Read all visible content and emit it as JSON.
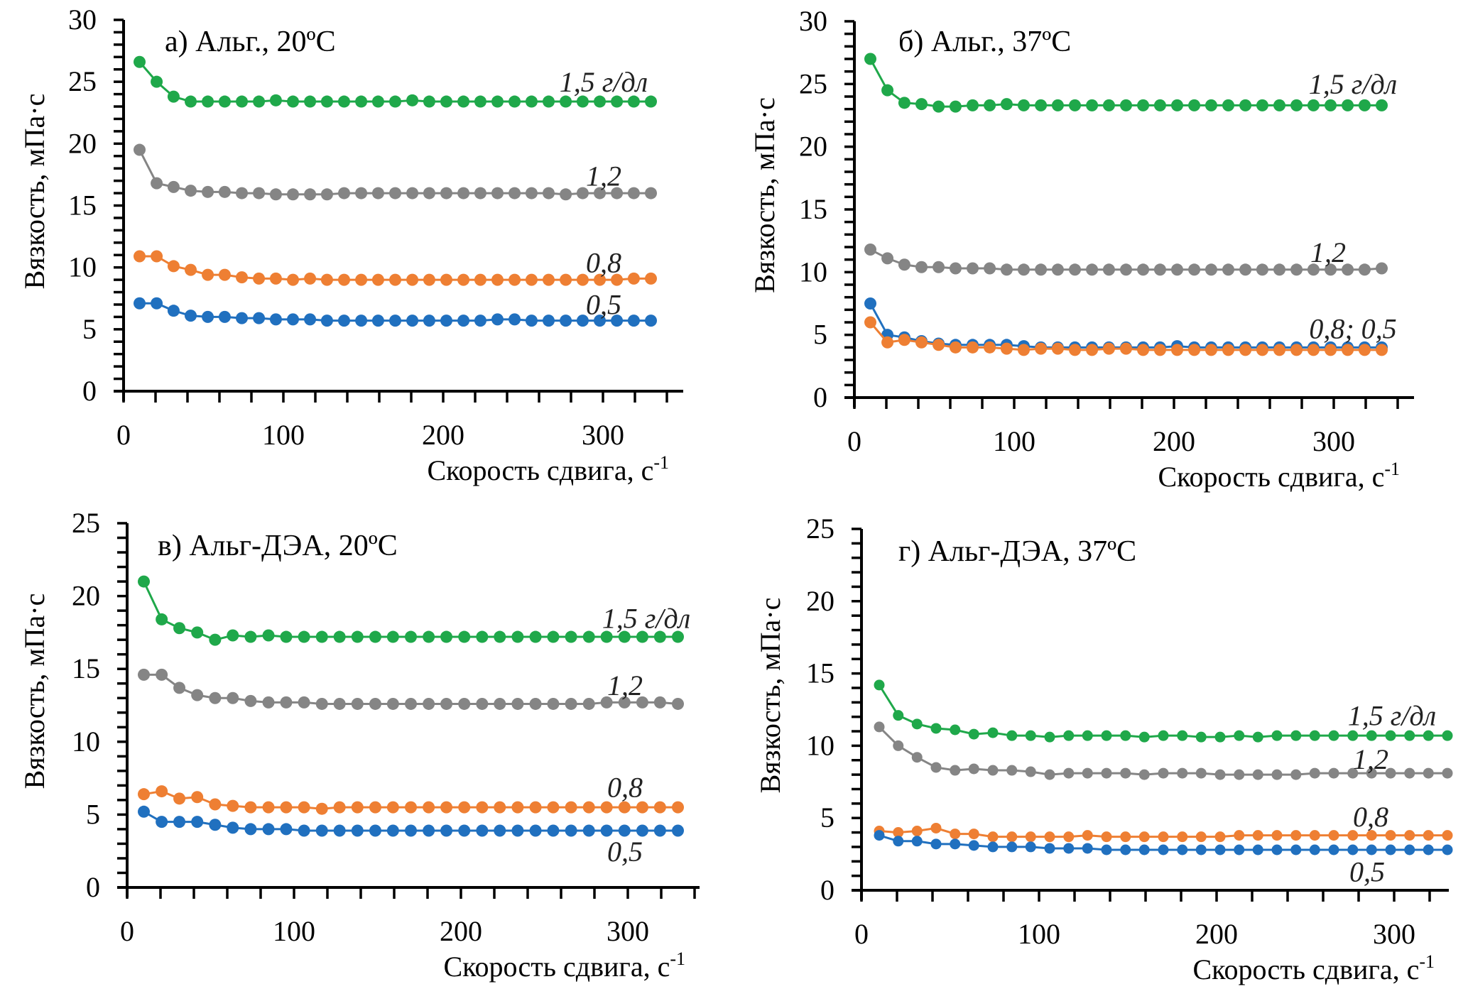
{
  "chart_data": [
    {
      "type": "line",
      "title": "а) Альг., 20ºC",
      "xlabel": "Скорость сдвига, с",
      "xlabel_sup": "-1",
      "ylabel": "Вязкость,  мПа·с",
      "xlim": [
        0,
        350
      ],
      "ylim": [
        0,
        30
      ],
      "xticks": [
        0,
        100,
        200,
        300
      ],
      "yticks": [
        0,
        5,
        10,
        15,
        20,
        25,
        30
      ],
      "grid": false,
      "x": [
        10,
        20.7,
        31.3,
        42,
        52.7,
        63.3,
        74,
        84.7,
        95.3,
        106,
        116.7,
        127.3,
        138,
        148.7,
        159.3,
        170,
        180.7,
        191.3,
        202,
        212.7,
        223.3,
        234,
        244.7,
        255.3,
        266,
        276.7,
        287.3,
        298,
        308.7,
        319.3,
        330
      ],
      "series": [
        {
          "name": "1,5 г/дл",
          "color": "#1fa84a",
          "label_value": 24.9,
          "values": [
            26.6,
            25.0,
            23.8,
            23.4,
            23.4,
            23.4,
            23.4,
            23.4,
            23.5,
            23.4,
            23.4,
            23.4,
            23.4,
            23.4,
            23.4,
            23.4,
            23.5,
            23.4,
            23.4,
            23.4,
            23.4,
            23.4,
            23.4,
            23.4,
            23.4,
            23.4,
            23.4,
            23.4,
            23.4,
            23.4,
            23.4
          ]
        },
        {
          "name": "1,2",
          "color": "#858585",
          "label_value": 17.3,
          "values": [
            19.5,
            16.8,
            16.5,
            16.2,
            16.1,
            16.1,
            16.0,
            16.0,
            15.9,
            15.9,
            15.9,
            15.9,
            16.0,
            16.0,
            16.0,
            16.0,
            16.0,
            16.0,
            16.0,
            16.0,
            16.0,
            16.0,
            16.0,
            16.0,
            16.0,
            15.9,
            16.0,
            16.0,
            16.0,
            16.0,
            16.0
          ]
        },
        {
          "name": "0,8",
          "color": "#ee7f33",
          "label_value": 10.3,
          "values": [
            10.9,
            10.9,
            10.1,
            9.8,
            9.4,
            9.4,
            9.2,
            9.1,
            9.1,
            9.0,
            9.1,
            9.0,
            9.0,
            9.0,
            9.0,
            9.0,
            9.0,
            9.0,
            9.0,
            9.0,
            9.0,
            9.0,
            9.0,
            9.0,
            9.0,
            9.0,
            9.0,
            9.0,
            9.0,
            9.1,
            9.1
          ]
        },
        {
          "name": "0,5",
          "color": "#2070bf",
          "label_value": 6.9,
          "values": [
            7.1,
            7.1,
            6.5,
            6.1,
            6.0,
            6.0,
            5.9,
            5.9,
            5.8,
            5.8,
            5.8,
            5.7,
            5.7,
            5.7,
            5.7,
            5.7,
            5.7,
            5.7,
            5.7,
            5.7,
            5.7,
            5.8,
            5.8,
            5.7,
            5.7,
            5.7,
            5.7,
            5.7,
            5.7,
            5.7,
            5.7
          ]
        }
      ]
    },
    {
      "type": "line",
      "title": "б) Альг., 37ºC",
      "xlabel": "Скорость сдвига, с",
      "xlabel_sup": "-1",
      "ylabel": "Вязкость,  мПа·с",
      "xlim": [
        0,
        350
      ],
      "ylim": [
        0,
        30
      ],
      "xticks": [
        0,
        100,
        200,
        300
      ],
      "yticks": [
        0,
        5,
        10,
        15,
        20,
        25,
        30
      ],
      "grid": false,
      "x": [
        10,
        20.7,
        31.3,
        42,
        52.7,
        63.3,
        74,
        84.7,
        95.3,
        106,
        116.7,
        127.3,
        138,
        148.7,
        159.3,
        170,
        180.7,
        191.3,
        202,
        212.7,
        223.3,
        234,
        244.7,
        255.3,
        266,
        276.7,
        287.3,
        298,
        308.7,
        319.3,
        330
      ],
      "series": [
        {
          "name": "1,5 г/дл",
          "color": "#1fa84a",
          "label_value": 24.9,
          "values": [
            27.0,
            24.5,
            23.5,
            23.4,
            23.2,
            23.2,
            23.3,
            23.3,
            23.4,
            23.3,
            23.3,
            23.3,
            23.3,
            23.3,
            23.3,
            23.3,
            23.3,
            23.3,
            23.3,
            23.3,
            23.3,
            23.3,
            23.3,
            23.3,
            23.3,
            23.3,
            23.3,
            23.3,
            23.3,
            23.3,
            23.3
          ]
        },
        {
          "name": "1,2",
          "color": "#858585",
          "label_value": 11.5,
          "values": [
            11.8,
            11.1,
            10.6,
            10.4,
            10.4,
            10.3,
            10.3,
            10.3,
            10.2,
            10.2,
            10.2,
            10.2,
            10.2,
            10.2,
            10.2,
            10.2,
            10.2,
            10.2,
            10.2,
            10.2,
            10.2,
            10.2,
            10.2,
            10.2,
            10.2,
            10.2,
            10.2,
            10.2,
            10.2,
            10.2,
            10.3
          ]
        },
        {
          "name": "0,5",
          "color": "#2070bf",
          "label_value": null,
          "values": [
            7.5,
            5.0,
            4.8,
            4.5,
            4.3,
            4.2,
            4.2,
            4.2,
            4.2,
            4.1,
            4.0,
            4.0,
            4.0,
            4.0,
            4.0,
            4.0,
            4.0,
            4.0,
            4.1,
            4.0,
            4.0,
            4.0,
            4.0,
            4.0,
            4.0,
            4.0,
            4.0,
            4.0,
            4.0,
            4.0,
            4.0
          ]
        },
        {
          "name": "0,8",
          "color": "#ee7f33",
          "label_value": null,
          "values": [
            6.0,
            4.4,
            4.6,
            4.4,
            4.2,
            4.0,
            4.0,
            4.0,
            3.9,
            3.8,
            3.9,
            3.9,
            3.8,
            3.8,
            3.9,
            3.9,
            3.8,
            3.8,
            3.8,
            3.8,
            3.8,
            3.8,
            3.8,
            3.8,
            3.8,
            3.8,
            3.8,
            3.8,
            3.8,
            3.8,
            3.8
          ]
        }
      ],
      "combined_label": {
        "text": "0,8; 0,5",
        "label_value": 5.4
      }
    },
    {
      "type": "line",
      "title": "в) Альг-ДЭА, 20ºC",
      "xlabel": "Скорость сдвига, с",
      "xlabel_sup": "-1",
      "ylabel": "Вязкость,  мПа·с",
      "xlim": [
        0,
        330
      ],
      "ylim": [
        0,
        25
      ],
      "xticks": [
        0,
        100,
        200,
        300
      ],
      "yticks": [
        0,
        5,
        10,
        15,
        20,
        25
      ],
      "grid": false,
      "x": [
        10,
        20.7,
        31.3,
        42,
        52.7,
        63.3,
        74,
        84.7,
        95.3,
        106,
        116.7,
        127.3,
        138,
        148.7,
        159.3,
        170,
        180.7,
        191.3,
        202,
        212.7,
        223.3,
        234,
        244.7,
        255.3,
        266,
        276.7,
        287.3,
        298,
        308.7,
        319.3,
        330
      ],
      "series": [
        {
          "name": "1,5 г/дл",
          "color": "#1fa84a",
          "label_value": 18.4,
          "values": [
            21.0,
            18.4,
            17.8,
            17.5,
            17.0,
            17.3,
            17.2,
            17.3,
            17.2,
            17.2,
            17.2,
            17.2,
            17.2,
            17.2,
            17.2,
            17.2,
            17.2,
            17.2,
            17.2,
            17.2,
            17.2,
            17.2,
            17.2,
            17.2,
            17.2,
            17.2,
            17.2,
            17.2,
            17.2,
            17.2,
            17.2
          ]
        },
        {
          "name": "1,2",
          "color": "#858585",
          "label_value": 13.8,
          "values": [
            14.6,
            14.6,
            13.7,
            13.2,
            13.0,
            13.0,
            12.8,
            12.7,
            12.7,
            12.7,
            12.6,
            12.6,
            12.6,
            12.6,
            12.6,
            12.6,
            12.6,
            12.6,
            12.6,
            12.6,
            12.6,
            12.6,
            12.6,
            12.6,
            12.6,
            12.6,
            12.7,
            12.7,
            12.7,
            12.7,
            12.6
          ]
        },
        {
          "name": "0,8",
          "color": "#ee7f33",
          "label_value": 6.8,
          "values": [
            6.4,
            6.6,
            6.1,
            6.2,
            5.7,
            5.6,
            5.5,
            5.5,
            5.5,
            5.5,
            5.4,
            5.5,
            5.5,
            5.5,
            5.5,
            5.5,
            5.5,
            5.5,
            5.5,
            5.5,
            5.5,
            5.5,
            5.5,
            5.5,
            5.5,
            5.5,
            5.5,
            5.5,
            5.5,
            5.5,
            5.5
          ]
        },
        {
          "name": "0,5",
          "color": "#2070bf",
          "label_value": 2.4,
          "values": [
            5.2,
            4.5,
            4.5,
            4.5,
            4.3,
            4.1,
            4.0,
            4.0,
            4.0,
            3.9,
            3.9,
            3.9,
            3.9,
            3.9,
            3.9,
            3.9,
            3.9,
            3.9,
            3.9,
            3.9,
            3.9,
            3.9,
            3.9,
            3.9,
            3.9,
            3.9,
            3.9,
            3.9,
            3.9,
            3.9,
            3.9
          ]
        }
      ]
    },
    {
      "type": "line",
      "title": "г) Альг-ДЭА, 37ºC",
      "xlabel": "Скорость сдвига, с",
      "xlabel_sup": "-1",
      "ylabel": "Вязкость,  мПа·с",
      "xlim": [
        0,
        330
      ],
      "ylim": [
        0,
        25
      ],
      "xticks": [
        0,
        100,
        200,
        300
      ],
      "yticks": [
        0,
        5,
        10,
        15,
        20,
        25
      ],
      "grid": false,
      "x": [
        10,
        20.7,
        31.3,
        42,
        52.7,
        63.3,
        74,
        84.7,
        95.3,
        106,
        116.7,
        127.3,
        138,
        148.7,
        159.3,
        170,
        180.7,
        191.3,
        202,
        212.7,
        223.3,
        234,
        244.7,
        255.3,
        266,
        276.7,
        287.3,
        298,
        308.7,
        319.3,
        330
      ],
      "series": [
        {
          "name": "1,5 г/дл",
          "color": "#1fa84a",
          "label_value": 12.0,
          "values": [
            14.2,
            12.1,
            11.5,
            11.2,
            11.1,
            10.8,
            10.9,
            10.7,
            10.7,
            10.6,
            10.7,
            10.7,
            10.7,
            10.7,
            10.6,
            10.7,
            10.7,
            10.6,
            10.6,
            10.7,
            10.6,
            10.7,
            10.7,
            10.7,
            10.7,
            10.7,
            10.7,
            10.7,
            10.7,
            10.7,
            10.7
          ]
        },
        {
          "name": "1,2",
          "color": "#858585",
          "label_value": 9.0,
          "values": [
            11.3,
            10.0,
            9.2,
            8.5,
            8.3,
            8.4,
            8.3,
            8.3,
            8.2,
            8.0,
            8.1,
            8.1,
            8.1,
            8.1,
            8.0,
            8.1,
            8.1,
            8.1,
            8.0,
            8.0,
            8.0,
            8.0,
            8.0,
            8.1,
            8.1,
            8.1,
            8.1,
            8.1,
            8.1,
            8.1,
            8.1
          ]
        },
        {
          "name": "0,8",
          "color": "#ee7f33",
          "label_value": 5.0,
          "values": [
            4.1,
            4.0,
            4.1,
            4.3,
            3.9,
            3.9,
            3.7,
            3.7,
            3.7,
            3.7,
            3.7,
            3.8,
            3.7,
            3.7,
            3.7,
            3.7,
            3.7,
            3.7,
            3.7,
            3.8,
            3.8,
            3.8,
            3.8,
            3.8,
            3.8,
            3.8,
            3.8,
            3.8,
            3.8,
            3.8,
            3.8
          ]
        },
        {
          "name": "0,5",
          "color": "#2070bf",
          "label_value": 1.2,
          "values": [
            3.8,
            3.4,
            3.4,
            3.2,
            3.2,
            3.1,
            3.0,
            3.0,
            3.0,
            2.9,
            2.9,
            2.9,
            2.8,
            2.8,
            2.8,
            2.8,
            2.8,
            2.8,
            2.8,
            2.8,
            2.8,
            2.8,
            2.8,
            2.8,
            2.8,
            2.8,
            2.8,
            2.8,
            2.8,
            2.8,
            2.8
          ]
        }
      ]
    }
  ]
}
